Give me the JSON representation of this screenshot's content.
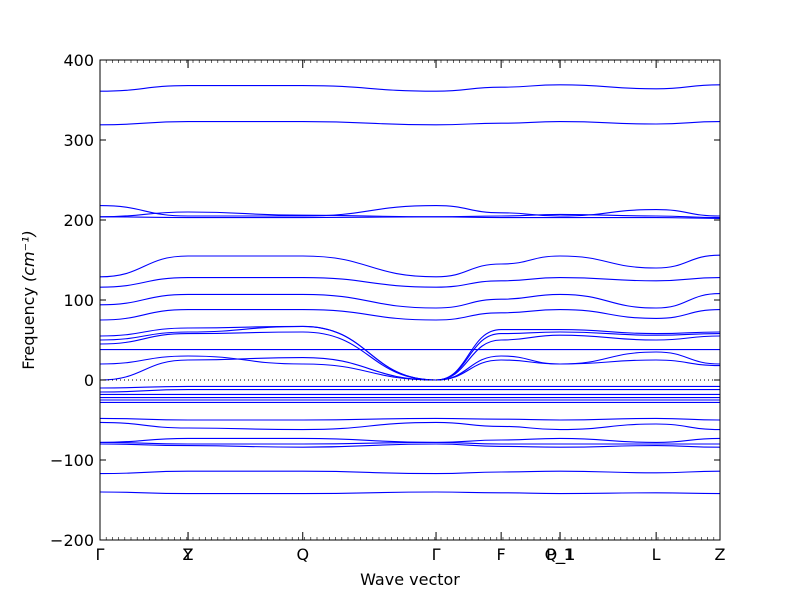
{
  "chart_data": {
    "type": "line",
    "xlabel": "Wave vector",
    "ylabel": "Frequency",
    "ylabel_unit": "(cm⁻¹)",
    "ylim": [
      -200,
      400
    ],
    "yticks": [
      -200,
      -100,
      0,
      100,
      200,
      300,
      400
    ],
    "xlim": [
      0,
      1
    ],
    "grid": false,
    "line_color": "#0000ff",
    "zero_line": {
      "y": 0,
      "style": "dotted"
    },
    "high_symmetry_points": [
      {
        "label": "Γ",
        "x": 0.0
      },
      {
        "label": "Y",
        "x": 0.142
      },
      {
        "label": "Z",
        "x": 0.142
      },
      {
        "label": "Q",
        "x": 0.327
      },
      {
        "label": "Γ",
        "x": 0.542
      },
      {
        "label": "F",
        "x": 0.647
      },
      {
        "label": "P_1",
        "x": 0.742
      },
      {
        "label": "Q_1",
        "x": 0.742
      },
      {
        "label": "L",
        "x": 0.897
      },
      {
        "label": "Z",
        "x": 1.0
      }
    ],
    "band_nodes": [
      0.0,
      0.142,
      0.327,
      0.542,
      0.647,
      0.742,
      0.897,
      1.0
    ],
    "series": [
      {
        "values": [
          361,
          368,
          368,
          361,
          366,
          369,
          364,
          369
        ]
      },
      {
        "values": [
          319,
          323,
          323,
          319,
          321,
          323,
          320,
          323
        ]
      },
      {
        "values": [
          218,
          205,
          205,
          218,
          209,
          205,
          213,
          205
        ]
      },
      {
        "values": [
          204,
          210,
          206,
          204,
          205,
          207,
          205,
          203
        ]
      },
      {
        "values": [
          204,
          203,
          203,
          204,
          203,
          203,
          203,
          202
        ]
      },
      {
        "values": [
          129,
          155,
          155,
          129,
          145,
          155,
          140,
          156
        ]
      },
      {
        "values": [
          116,
          128,
          128,
          116,
          124,
          128,
          124,
          128
        ]
      },
      {
        "values": [
          94,
          107,
          107,
          90,
          101,
          107,
          90,
          108
        ]
      },
      {
        "values": [
          75,
          88,
          88,
          75,
          84,
          88,
          77,
          88
        ]
      },
      {
        "values": [
          55,
          65,
          67,
          0,
          63,
          63,
          58,
          60
        ]
      },
      {
        "values": [
          50,
          60,
          67,
          0,
          58,
          60,
          56,
          58
        ]
      },
      {
        "values": [
          45,
          58,
          60,
          0,
          50,
          56,
          50,
          55
        ]
      },
      {
        "values": [
          38,
          38,
          38,
          38,
          38,
          38,
          38,
          38
        ]
      },
      {
        "values": [
          20,
          30,
          20,
          0,
          30,
          20,
          35,
          20
        ]
      },
      {
        "values": [
          0,
          25,
          28,
          0,
          25,
          20,
          25,
          18
        ]
      },
      {
        "values": [
          -10,
          -8,
          -8,
          -8,
          -8,
          -8,
          -8,
          -8
        ]
      },
      {
        "values": [
          -15,
          -12,
          -12,
          -12,
          -12,
          -12,
          -12,
          -12
        ]
      },
      {
        "values": [
          -18,
          -18,
          -18,
          -18,
          -18,
          -18,
          -18,
          -18
        ]
      },
      {
        "values": [
          -22,
          -22,
          -22,
          -22,
          -22,
          -22,
          -22,
          -22
        ]
      },
      {
        "values": [
          -25,
          -25,
          -25,
          -25,
          -25,
          -25,
          -25,
          -25
        ]
      },
      {
        "values": [
          -28,
          -28,
          -28,
          -28,
          -28,
          -28,
          -28,
          -28
        ]
      },
      {
        "values": [
          -48,
          -50,
          -50,
          -48,
          -49,
          -50,
          -48,
          -50
        ]
      },
      {
        "values": [
          -53,
          -60,
          -62,
          -53,
          -58,
          -62,
          -55,
          -62
        ]
      },
      {
        "values": [
          -78,
          -73,
          -73,
          -78,
          -75,
          -73,
          -78,
          -73
        ]
      },
      {
        "values": [
          -78,
          -80,
          -80,
          -78,
          -80,
          -80,
          -80,
          -80
        ]
      },
      {
        "values": [
          -80,
          -82,
          -84,
          -80,
          -83,
          -84,
          -82,
          -84
        ]
      },
      {
        "values": [
          -117,
          -114,
          -114,
          -117,
          -115,
          -114,
          -116,
          -114
        ]
      },
      {
        "values": [
          -140,
          -142,
          -142,
          -140,
          -141,
          -142,
          -141,
          -142
        ]
      }
    ]
  }
}
